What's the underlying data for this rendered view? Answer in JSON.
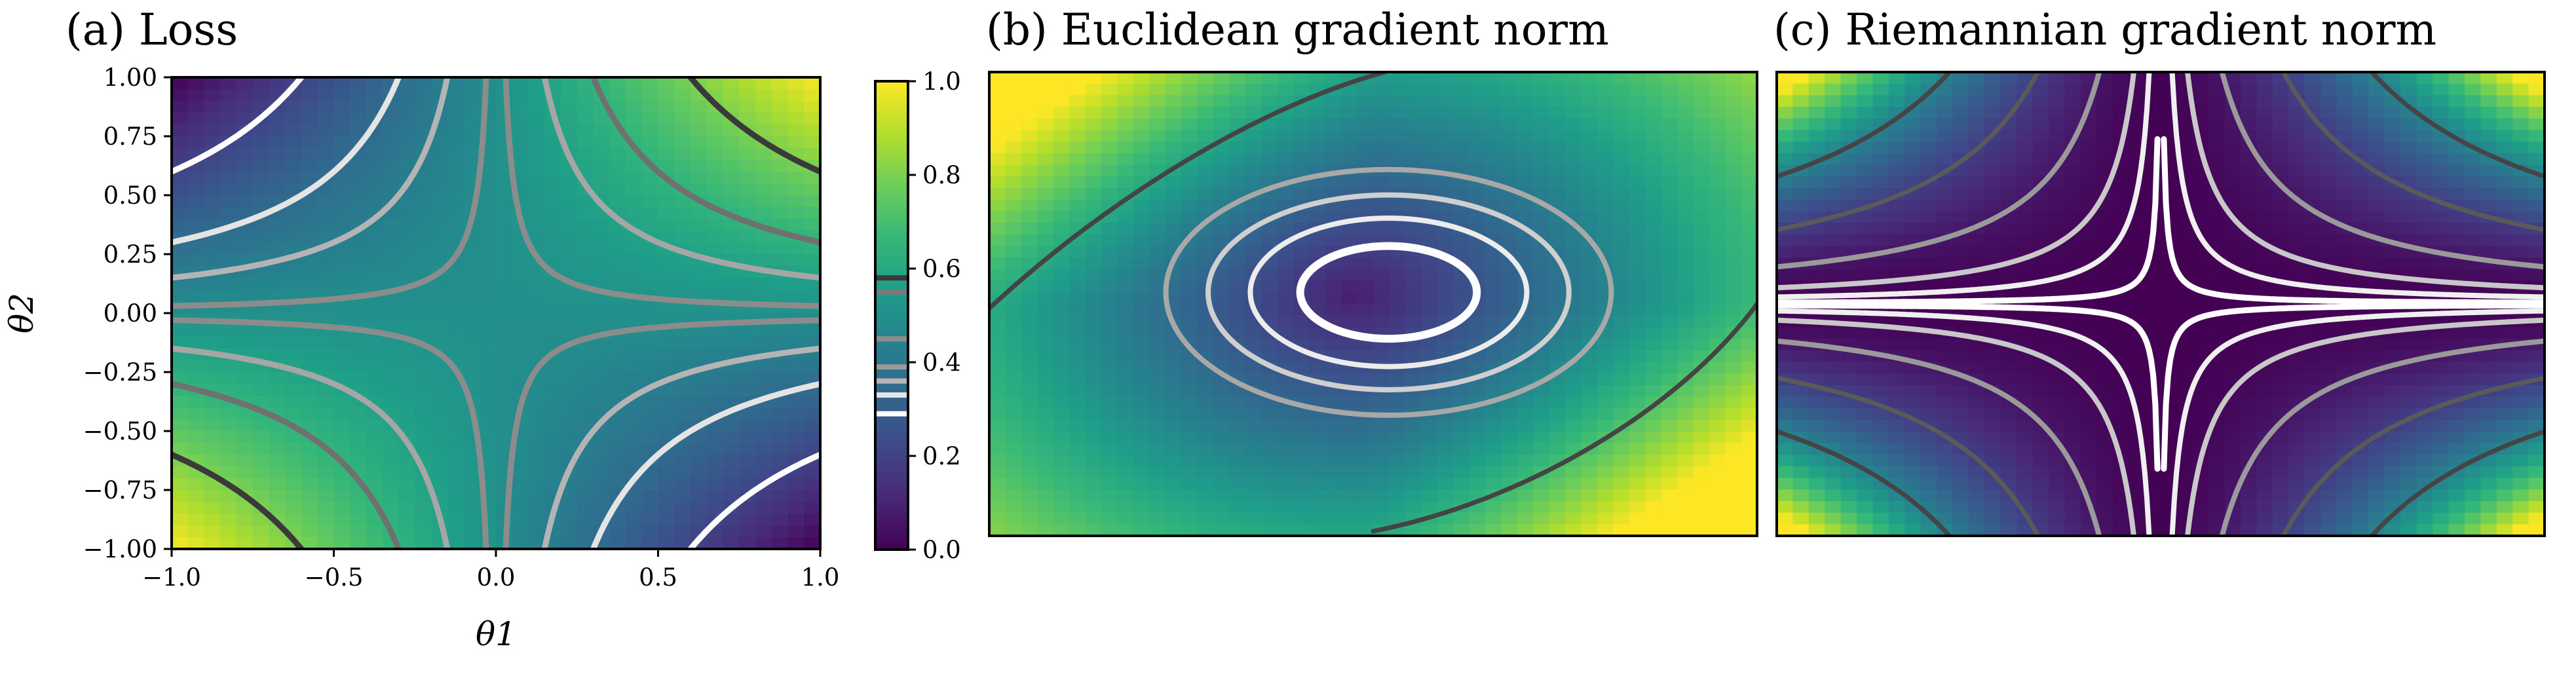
{
  "chart_data": [
    {
      "type": "heatmap",
      "title": "(a) Loss",
      "xlabel": "θ1",
      "ylabel": "θ2",
      "xlim": [
        -1.0,
        1.0
      ],
      "ylim": [
        -1.0,
        1.0
      ],
      "xticks": [
        -1.0,
        -0.5,
        0.0,
        0.5,
        1.0
      ],
      "xtick_labels": [
        "−1.0",
        "−0.5",
        "0.0",
        "0.5",
        "1.0"
      ],
      "yticks": [
        1.0,
        0.75,
        0.5,
        0.25,
        0.0,
        -0.25,
        -0.5,
        -0.75,
        -1.0
      ],
      "ytick_labels": [
        "1.00",
        "0.75",
        "0.50",
        "0.25",
        "0.00",
        "−0.25",
        "−0.50",
        "−0.75",
        "−1.00"
      ],
      "colormap": "viridis",
      "color_range": [
        0.0,
        1.0
      ],
      "contour_levels": [
        -0.6,
        -0.3,
        -0.15,
        -0.03,
        0.03,
        0.15,
        0.3,
        0.6
      ],
      "contour_colors": [
        "#ffffff",
        "#e4e4e4",
        "#b4b4b4",
        "#8c8c8c",
        "#8c8c8c",
        "#a6a6a6",
        "#707070",
        "#3a3a3a"
      ]
    },
    {
      "type": "heatmap",
      "title": "(b) Euclidean gradient norm",
      "xlim": [
        -1.0,
        1.0
      ],
      "ylim": [
        -1.0,
        1.0
      ],
      "colormap": "viridis",
      "color_range": [
        0.0,
        1.0
      ],
      "contour_levels": [
        0.08,
        0.14,
        0.22,
        0.31,
        0.42,
        0.75
      ],
      "contour_colors": [
        "#ffffff",
        "#ececec",
        "#cfcfcf",
        "#a8a8a8",
        "#8a8a8a",
        "#444444"
      ]
    },
    {
      "type": "heatmap",
      "title": "(c) Riemannian gradient norm",
      "xlim": [
        -1.0,
        1.0
      ],
      "ylim": [
        -1.0,
        1.0
      ],
      "colormap": "viridis",
      "color_range": [
        0.0,
        1.0
      ],
      "contour_levels": [
        0.02,
        0.1,
        0.25,
        0.5
      ],
      "contour_colors": [
        "#ffffff",
        "#d8d8d8",
        "#999999",
        "#505050"
      ]
    }
  ],
  "colorbar": {
    "colormap": "viridis",
    "range": [
      0.0,
      1.0
    ],
    "ticks": [
      0.0,
      0.2,
      0.4,
      0.6,
      0.8,
      1.0
    ],
    "tick_labels": [
      "0.0",
      "0.2",
      "0.4",
      "0.6",
      "0.8",
      "1.0"
    ]
  }
}
